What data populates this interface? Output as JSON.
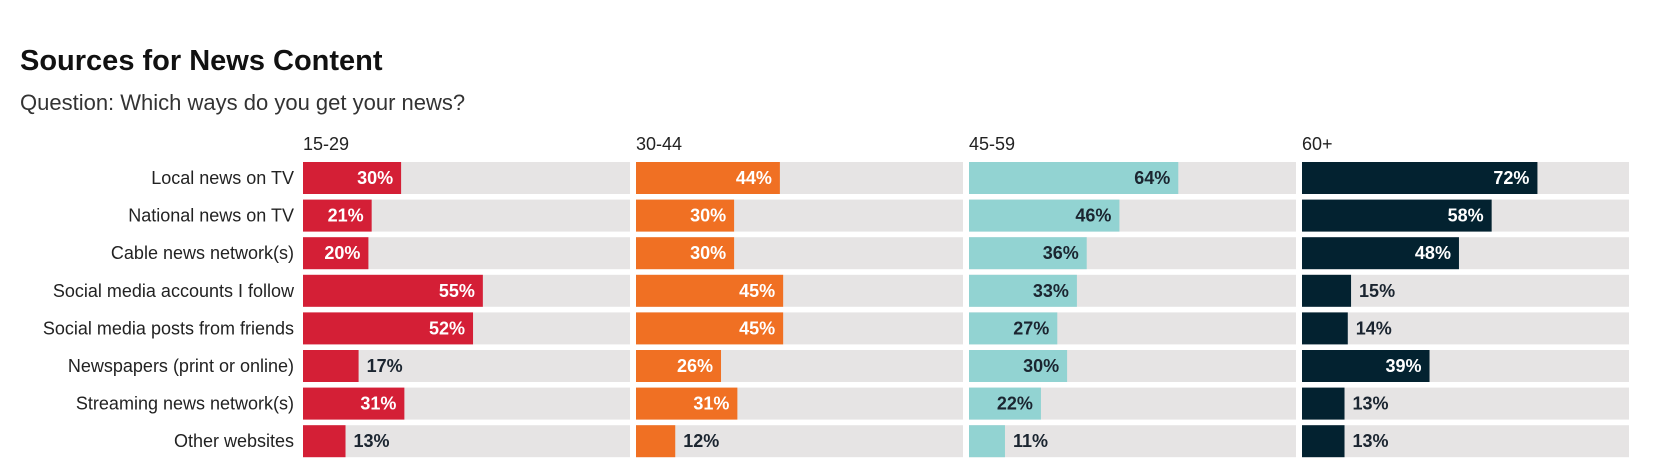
{
  "chart_data": {
    "type": "bar",
    "orientation": "horizontal",
    "title": "Sources for News Content",
    "subtitle": "Question: Which ways do you get your news?",
    "categories": [
      "Local news on TV",
      "National news on TV",
      "Cable news network(s)",
      "Social media accounts I follow",
      "Social media posts from friends",
      "Newspapers (print or online)",
      "Streaming news network(s)",
      "Other websites"
    ],
    "xlim": [
      0,
      100
    ],
    "value_suffix": "%",
    "series": [
      {
        "name": "15-29",
        "color": "#d41f36",
        "values": [
          30,
          21,
          20,
          55,
          52,
          17,
          31,
          13
        ]
      },
      {
        "name": "30-44",
        "color": "#f07023",
        "values": [
          44,
          30,
          30,
          45,
          45,
          26,
          31,
          12
        ]
      },
      {
        "name": "45-59",
        "color": "#92d3d2",
        "values": [
          64,
          46,
          36,
          33,
          27,
          30,
          22,
          11
        ]
      },
      {
        "name": "60+",
        "color": "#032230",
        "values": [
          72,
          58,
          48,
          15,
          14,
          39,
          13,
          13
        ]
      }
    ],
    "track_color": "#e6e4e4",
    "label_light_color": "#ffffff",
    "label_dark_color": "#1b2530"
  }
}
